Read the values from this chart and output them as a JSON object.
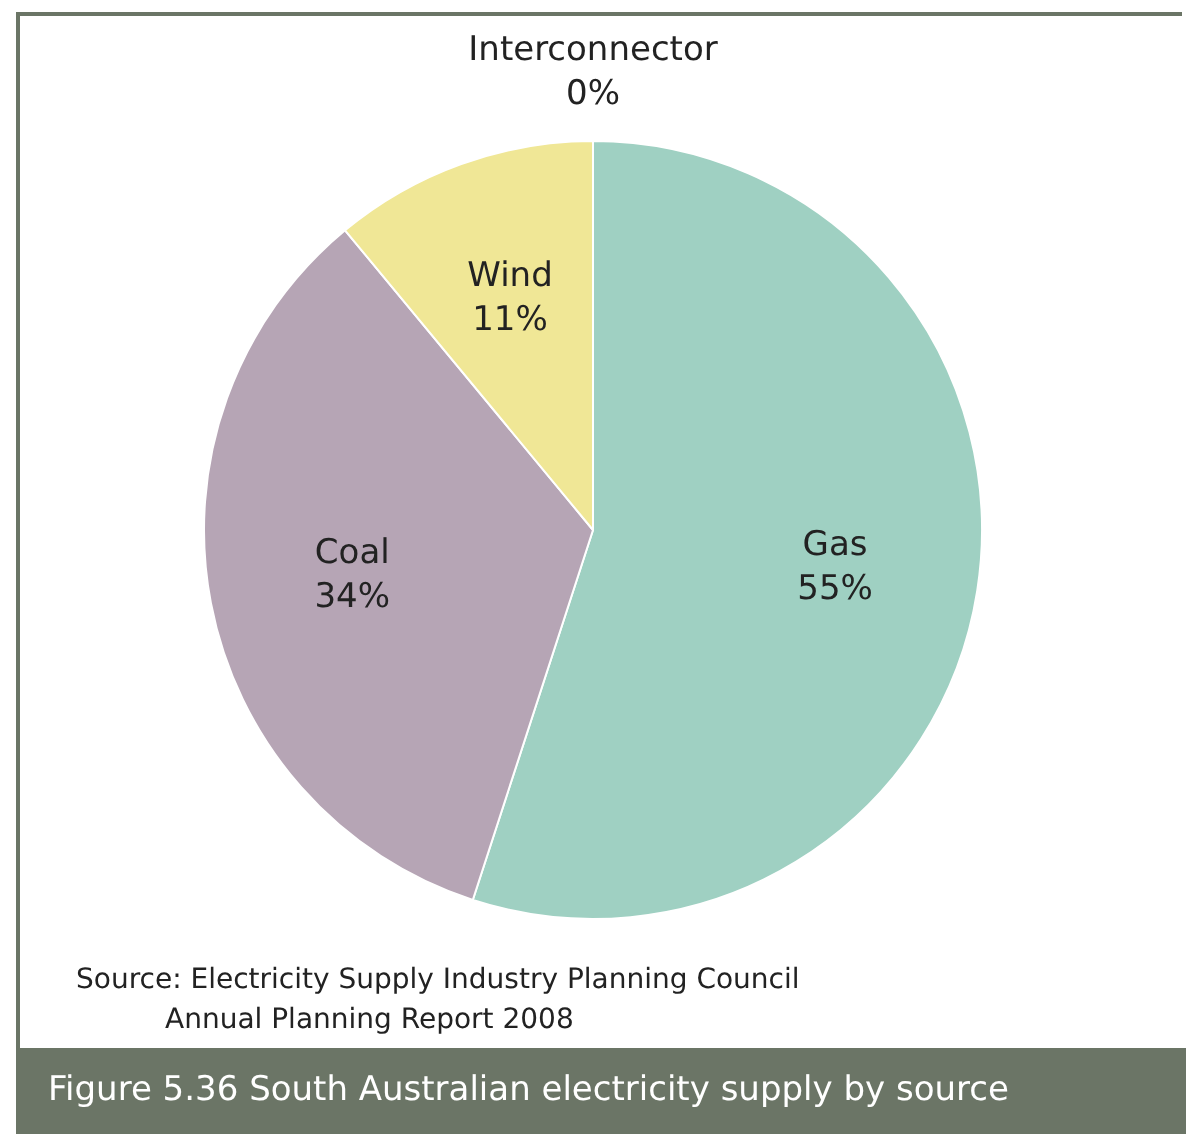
{
  "chart_data": {
    "type": "pie",
    "title": "Figure 5.36  South Australian electricity supply by source",
    "categories": [
      "Gas",
      "Coal",
      "Wind",
      "Interconnector"
    ],
    "values": [
      55,
      34,
      11,
      0
    ],
    "value_labels": [
      "55%",
      "34%",
      "11%",
      "0%"
    ],
    "colors": [
      "#9fd0c2",
      "#b6a5b5",
      "#f0e796",
      "#d9d9d9"
    ],
    "legend": false,
    "annotations": [
      "Source: Electricity Supply Industry Planning Council\nAnnual Planning Report 2008"
    ]
  }
}
